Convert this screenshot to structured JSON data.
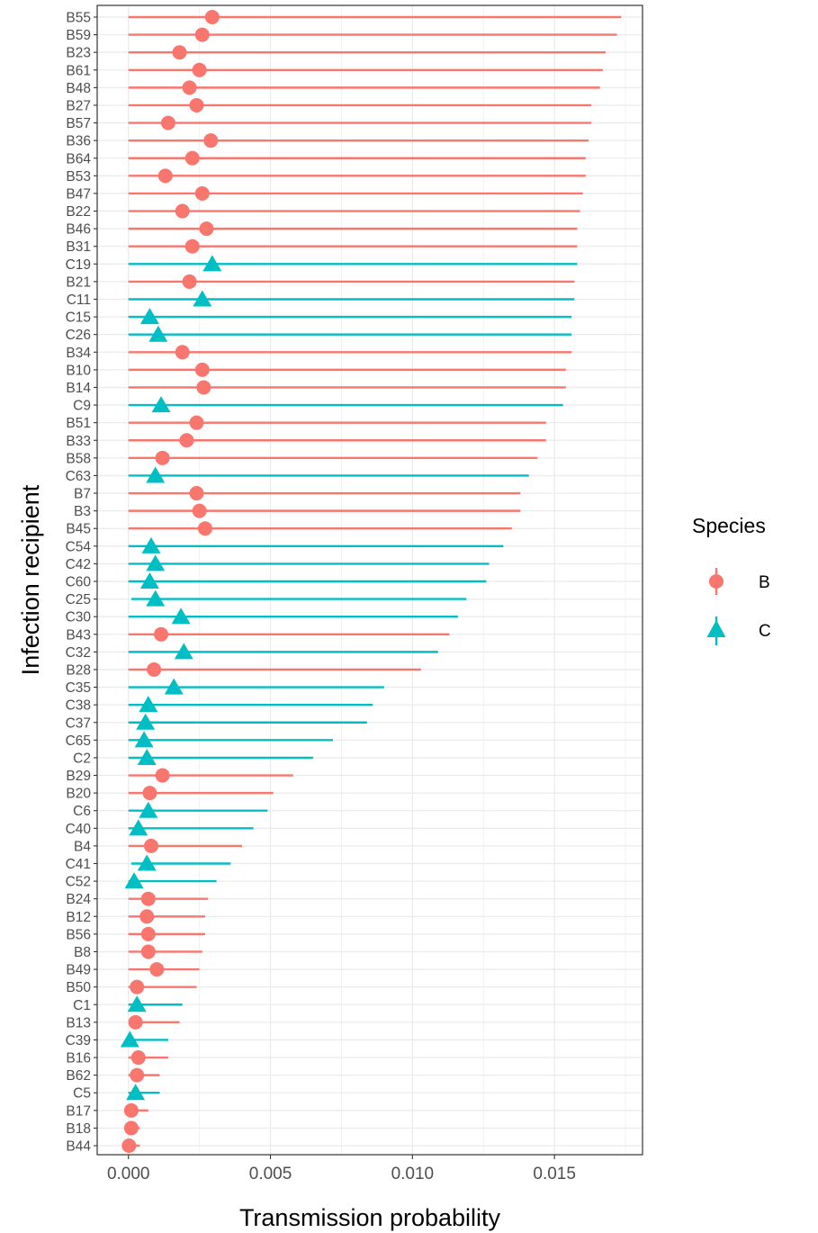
{
  "chart_data": {
    "type": "pointrange",
    "xlabel": "Transmission probability",
    "ylabel": "Infection recipient",
    "xlim": [
      -0.0011,
      0.0181
    ],
    "x_ticks": [
      "0.000",
      "0.005",
      "0.010",
      "0.015"
    ],
    "x_tick_values": [
      0,
      0.005,
      0.01,
      0.015
    ],
    "grid": true,
    "legend": {
      "title": "Species",
      "position": "right",
      "entries": [
        {
          "name": "B",
          "color": "#F8766D",
          "shape": "circle"
        },
        {
          "name": "C",
          "color": "#00BFC4",
          "shape": "triangle"
        }
      ]
    },
    "series": [
      {
        "label": "B55",
        "species": "B",
        "value": 0.00295,
        "low": 0,
        "high": 0.01735
      },
      {
        "label": "B59",
        "species": "B",
        "value": 0.0026,
        "low": 0,
        "high": 0.0172
      },
      {
        "label": "B23",
        "species": "B",
        "value": 0.0018,
        "low": 0,
        "high": 0.0168
      },
      {
        "label": "B61",
        "species": "B",
        "value": 0.0025,
        "low": 0,
        "high": 0.0167
      },
      {
        "label": "B48",
        "species": "B",
        "value": 0.00215,
        "low": 0,
        "high": 0.0166
      },
      {
        "label": "B27",
        "species": "B",
        "value": 0.0024,
        "low": 0,
        "high": 0.0163
      },
      {
        "label": "B57",
        "species": "B",
        "value": 0.0014,
        "low": 0,
        "high": 0.0163
      },
      {
        "label": "B36",
        "species": "B",
        "value": 0.0029,
        "low": 0,
        "high": 0.0162
      },
      {
        "label": "B64",
        "species": "B",
        "value": 0.00225,
        "low": 0,
        "high": 0.0161
      },
      {
        "label": "B53",
        "species": "B",
        "value": 0.0013,
        "low": 0,
        "high": 0.0161
      },
      {
        "label": "B47",
        "species": "B",
        "value": 0.0026,
        "low": 0,
        "high": 0.016
      },
      {
        "label": "B22",
        "species": "B",
        "value": 0.0019,
        "low": 0,
        "high": 0.0159
      },
      {
        "label": "B46",
        "species": "B",
        "value": 0.00275,
        "low": 0,
        "high": 0.0158
      },
      {
        "label": "B31",
        "species": "B",
        "value": 0.00225,
        "low": 0,
        "high": 0.0158
      },
      {
        "label": "C19",
        "species": "C",
        "value": 0.00295,
        "low": 0,
        "high": 0.0158
      },
      {
        "label": "B21",
        "species": "B",
        "value": 0.00215,
        "low": 0,
        "high": 0.0157
      },
      {
        "label": "C11",
        "species": "C",
        "value": 0.0026,
        "low": 0,
        "high": 0.0157
      },
      {
        "label": "C15",
        "species": "C",
        "value": 0.00075,
        "low": 0,
        "high": 0.0156
      },
      {
        "label": "C26",
        "species": "C",
        "value": 0.00105,
        "low": 0,
        "high": 0.0156
      },
      {
        "label": "B34",
        "species": "B",
        "value": 0.0019,
        "low": 0,
        "high": 0.0156
      },
      {
        "label": "B10",
        "species": "B",
        "value": 0.0026,
        "low": 0,
        "high": 0.0154
      },
      {
        "label": "B14",
        "species": "B",
        "value": 0.00265,
        "low": 0,
        "high": 0.0154
      },
      {
        "label": "C9",
        "species": "C",
        "value": 0.00115,
        "low": 0,
        "high": 0.0153
      },
      {
        "label": "B51",
        "species": "B",
        "value": 0.0024,
        "low": 0,
        "high": 0.0147
      },
      {
        "label": "B33",
        "species": "B",
        "value": 0.00205,
        "low": 0,
        "high": 0.0147
      },
      {
        "label": "B58",
        "species": "B",
        "value": 0.0012,
        "low": 0,
        "high": 0.0144
      },
      {
        "label": "C63",
        "species": "C",
        "value": 0.00095,
        "low": 0,
        "high": 0.0141
      },
      {
        "label": "B7",
        "species": "B",
        "value": 0.0024,
        "low": 0,
        "high": 0.0138
      },
      {
        "label": "B3",
        "species": "B",
        "value": 0.0025,
        "low": 0,
        "high": 0.0138
      },
      {
        "label": "B45",
        "species": "B",
        "value": 0.0027,
        "low": 0,
        "high": 0.0135
      },
      {
        "label": "C54",
        "species": "C",
        "value": 0.0008,
        "low": 0,
        "high": 0.0132
      },
      {
        "label": "C42",
        "species": "C",
        "value": 0.00095,
        "low": 0,
        "high": 0.0127
      },
      {
        "label": "C60",
        "species": "C",
        "value": 0.00075,
        "low": 0,
        "high": 0.0126
      },
      {
        "label": "C25",
        "species": "C",
        "value": 0.00095,
        "low": 0.0001,
        "high": 0.0119
      },
      {
        "label": "C30",
        "species": "C",
        "value": 0.00185,
        "low": 0,
        "high": 0.0116
      },
      {
        "label": "B43",
        "species": "B",
        "value": 0.00115,
        "low": 0,
        "high": 0.0113
      },
      {
        "label": "C32",
        "species": "C",
        "value": 0.00195,
        "low": 0,
        "high": 0.0109
      },
      {
        "label": "B28",
        "species": "B",
        "value": 0.0009,
        "low": 0,
        "high": 0.0103
      },
      {
        "label": "C35",
        "species": "C",
        "value": 0.0016,
        "low": 0,
        "high": 0.009
      },
      {
        "label": "C38",
        "species": "C",
        "value": 0.0007,
        "low": 0,
        "high": 0.0086
      },
      {
        "label": "C37",
        "species": "C",
        "value": 0.0006,
        "low": 0,
        "high": 0.0084
      },
      {
        "label": "C65",
        "species": "C",
        "value": 0.00055,
        "low": 0,
        "high": 0.0072
      },
      {
        "label": "C2",
        "species": "C",
        "value": 0.00065,
        "low": 0,
        "high": 0.0065
      },
      {
        "label": "B29",
        "species": "B",
        "value": 0.0012,
        "low": 0,
        "high": 0.0058
      },
      {
        "label": "B20",
        "species": "B",
        "value": 0.00075,
        "low": 0,
        "high": 0.0051
      },
      {
        "label": "C6",
        "species": "C",
        "value": 0.0007,
        "low": 0,
        "high": 0.0049
      },
      {
        "label": "C40",
        "species": "C",
        "value": 0.00035,
        "low": 0,
        "high": 0.0044
      },
      {
        "label": "B4",
        "species": "B",
        "value": 0.0008,
        "low": 0,
        "high": 0.004
      },
      {
        "label": "C41",
        "species": "C",
        "value": 0.00065,
        "low": 0.0001,
        "high": 0.0036
      },
      {
        "label": "C52",
        "species": "C",
        "value": 0.0002,
        "low": 0,
        "high": 0.0031
      },
      {
        "label": "B24",
        "species": "B",
        "value": 0.0007,
        "low": 0,
        "high": 0.0028
      },
      {
        "label": "B12",
        "species": "B",
        "value": 0.00065,
        "low": 0,
        "high": 0.0027
      },
      {
        "label": "B56",
        "species": "B",
        "value": 0.0007,
        "low": 0,
        "high": 0.0027
      },
      {
        "label": "B8",
        "species": "B",
        "value": 0.0007,
        "low": 0,
        "high": 0.0026
      },
      {
        "label": "B49",
        "species": "B",
        "value": 0.001,
        "low": 0,
        "high": 0.0025
      },
      {
        "label": "B50",
        "species": "B",
        "value": 0.0003,
        "low": 0,
        "high": 0.0024
      },
      {
        "label": "C1",
        "species": "C",
        "value": 0.0003,
        "low": 0,
        "high": 0.0019
      },
      {
        "label": "B13",
        "species": "B",
        "value": 0.00025,
        "low": 0,
        "high": 0.0018
      },
      {
        "label": "C39",
        "species": "C",
        "value": 5e-05,
        "low": 0,
        "high": 0.0014
      },
      {
        "label": "B16",
        "species": "B",
        "value": 0.00035,
        "low": 0,
        "high": 0.0014
      },
      {
        "label": "B62",
        "species": "B",
        "value": 0.0003,
        "low": 0,
        "high": 0.0011
      },
      {
        "label": "C5",
        "species": "C",
        "value": 0.00025,
        "low": 0,
        "high": 0.0011
      },
      {
        "label": "B17",
        "species": "B",
        "value": 0.0001,
        "low": 0,
        "high": 0.0007
      },
      {
        "label": "B18",
        "species": "B",
        "value": 0.0001,
        "low": 0,
        "high": 0.0004
      },
      {
        "label": "B44",
        "species": "B",
        "value": 2e-05,
        "low": 0,
        "high": 0.0004
      }
    ]
  }
}
